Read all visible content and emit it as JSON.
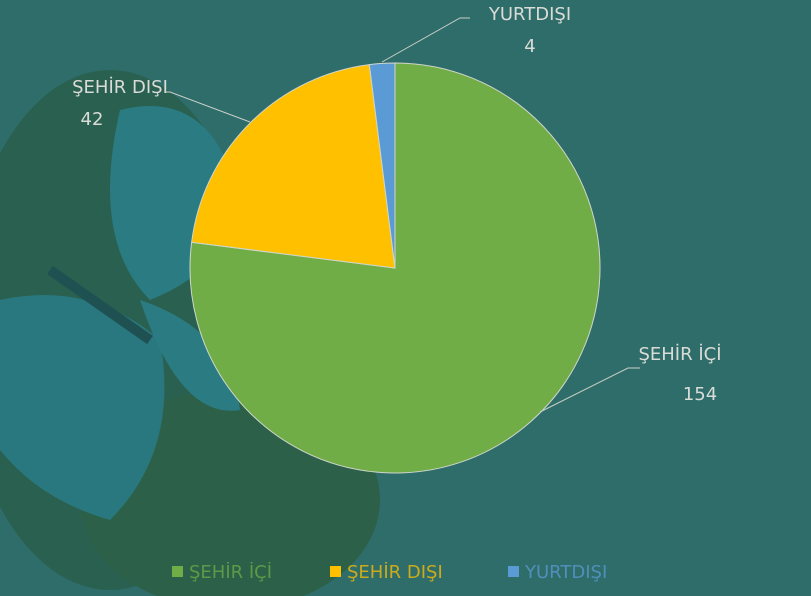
{
  "chart_data": {
    "type": "pie",
    "categories": [
      "ŞEHİR İÇİ",
      "ŞEHİR DIŞI",
      "YURTDIŞI"
    ],
    "values": [
      154,
      42,
      4
    ],
    "colors": [
      "#70ad47",
      "#ffc000",
      "#5b9bd5"
    ],
    "legend": "bottom"
  }
}
